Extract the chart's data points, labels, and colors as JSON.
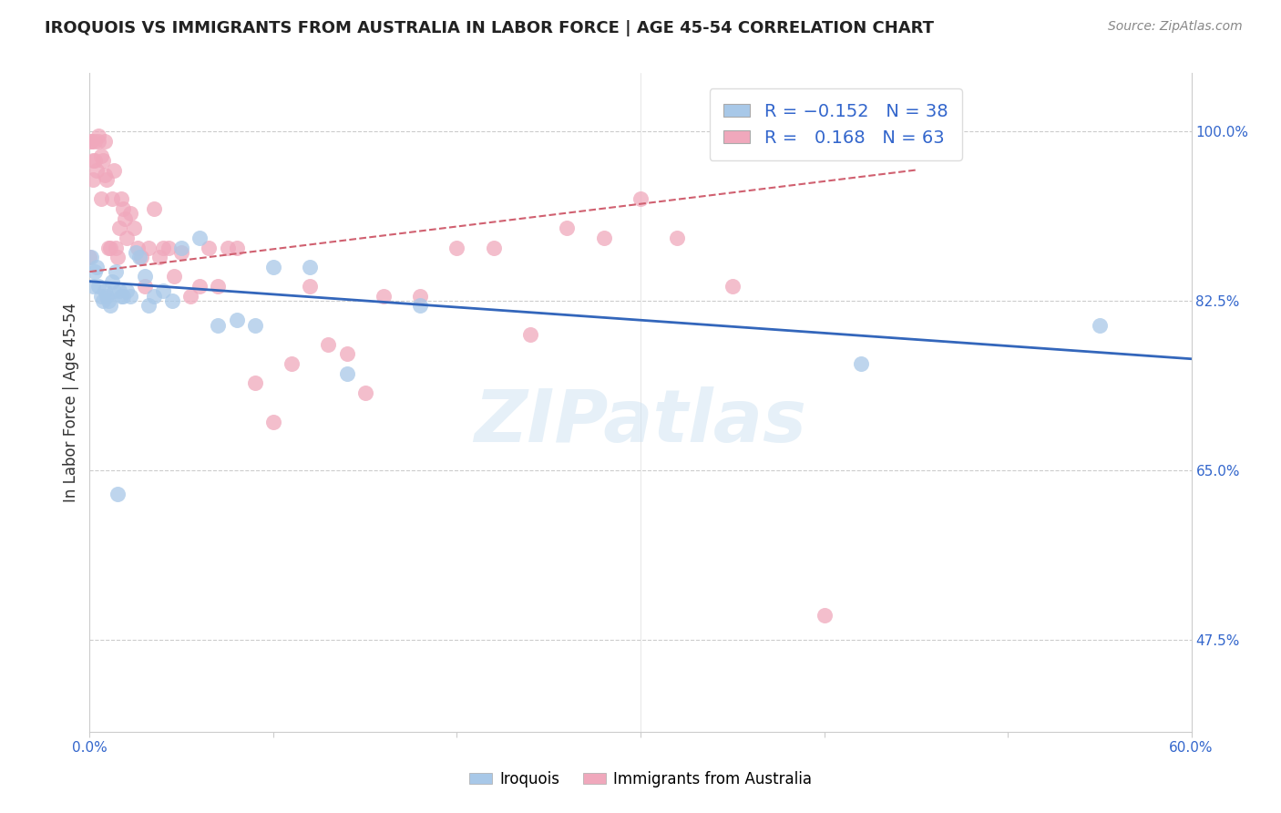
{
  "title": "IROQUOIS VS IMMIGRANTS FROM AUSTRALIA IN LABOR FORCE | AGE 45-54 CORRELATION CHART",
  "source": "Source: ZipAtlas.com",
  "ylabel": "In Labor Force | Age 45-54",
  "xlim": [
    0.0,
    0.6
  ],
  "ylim": [
    0.38,
    1.06
  ],
  "xticks": [
    0.0,
    0.1,
    0.2,
    0.3,
    0.4,
    0.5,
    0.6
  ],
  "xticklabels": [
    "0.0%",
    "",
    "",
    "",
    "",
    "",
    "60.0%"
  ],
  "yticks_right": [
    0.475,
    0.65,
    0.825,
    1.0
  ],
  "yticklabels_right": [
    "47.5%",
    "65.0%",
    "82.5%",
    "100.0%"
  ],
  "blue_color": "#a8c8e8",
  "pink_color": "#f0a8bc",
  "blue_line_color": "#3366bb",
  "pink_line_color": "#d06070",
  "legend_label_blue": "Iroquois",
  "legend_label_pink": "Immigrants from Australia",
  "blue_x": [
    0.001,
    0.002,
    0.003,
    0.004,
    0.005,
    0.006,
    0.007,
    0.008,
    0.009,
    0.01,
    0.011,
    0.012,
    0.013,
    0.014,
    0.015,
    0.016,
    0.017,
    0.018,
    0.02,
    0.022,
    0.025,
    0.027,
    0.03,
    0.032,
    0.035,
    0.04,
    0.045,
    0.05,
    0.06,
    0.07,
    0.08,
    0.09,
    0.1,
    0.12,
    0.14,
    0.18,
    0.42,
    0.55
  ],
  "blue_y": [
    0.87,
    0.84,
    0.855,
    0.86,
    0.84,
    0.83,
    0.825,
    0.835,
    0.83,
    0.825,
    0.82,
    0.845,
    0.835,
    0.855,
    0.625,
    0.835,
    0.83,
    0.83,
    0.835,
    0.83,
    0.875,
    0.87,
    0.85,
    0.82,
    0.83,
    0.835,
    0.825,
    0.88,
    0.89,
    0.8,
    0.805,
    0.8,
    0.86,
    0.86,
    0.75,
    0.82,
    0.76,
    0.8
  ],
  "pink_x": [
    0.0,
    0.001,
    0.001,
    0.002,
    0.002,
    0.003,
    0.003,
    0.004,
    0.005,
    0.005,
    0.006,
    0.006,
    0.007,
    0.008,
    0.008,
    0.009,
    0.01,
    0.011,
    0.012,
    0.013,
    0.014,
    0.015,
    0.016,
    0.017,
    0.018,
    0.019,
    0.02,
    0.022,
    0.024,
    0.026,
    0.028,
    0.03,
    0.032,
    0.035,
    0.038,
    0.04,
    0.043,
    0.046,
    0.05,
    0.055,
    0.06,
    0.065,
    0.07,
    0.075,
    0.08,
    0.09,
    0.1,
    0.11,
    0.12,
    0.13,
    0.14,
    0.15,
    0.16,
    0.18,
    0.2,
    0.22,
    0.24,
    0.26,
    0.28,
    0.3,
    0.32,
    0.35,
    0.4
  ],
  "pink_y": [
    0.87,
    0.99,
    0.99,
    0.97,
    0.95,
    0.99,
    0.97,
    0.96,
    0.995,
    0.99,
    0.975,
    0.93,
    0.97,
    0.99,
    0.955,
    0.95,
    0.88,
    0.88,
    0.93,
    0.96,
    0.88,
    0.87,
    0.9,
    0.93,
    0.92,
    0.91,
    0.89,
    0.915,
    0.9,
    0.88,
    0.87,
    0.84,
    0.88,
    0.92,
    0.87,
    0.88,
    0.88,
    0.85,
    0.875,
    0.83,
    0.84,
    0.88,
    0.84,
    0.88,
    0.88,
    0.74,
    0.7,
    0.76,
    0.84,
    0.78,
    0.77,
    0.73,
    0.83,
    0.83,
    0.88,
    0.88,
    0.79,
    0.9,
    0.89,
    0.93,
    0.89,
    0.84,
    0.5
  ],
  "blue_trendline_x": [
    0.0,
    0.6
  ],
  "blue_trendline_y": [
    0.845,
    0.765
  ],
  "pink_trendline_x": [
    0.0,
    0.45
  ],
  "pink_trendline_y": [
    0.855,
    0.96
  ]
}
